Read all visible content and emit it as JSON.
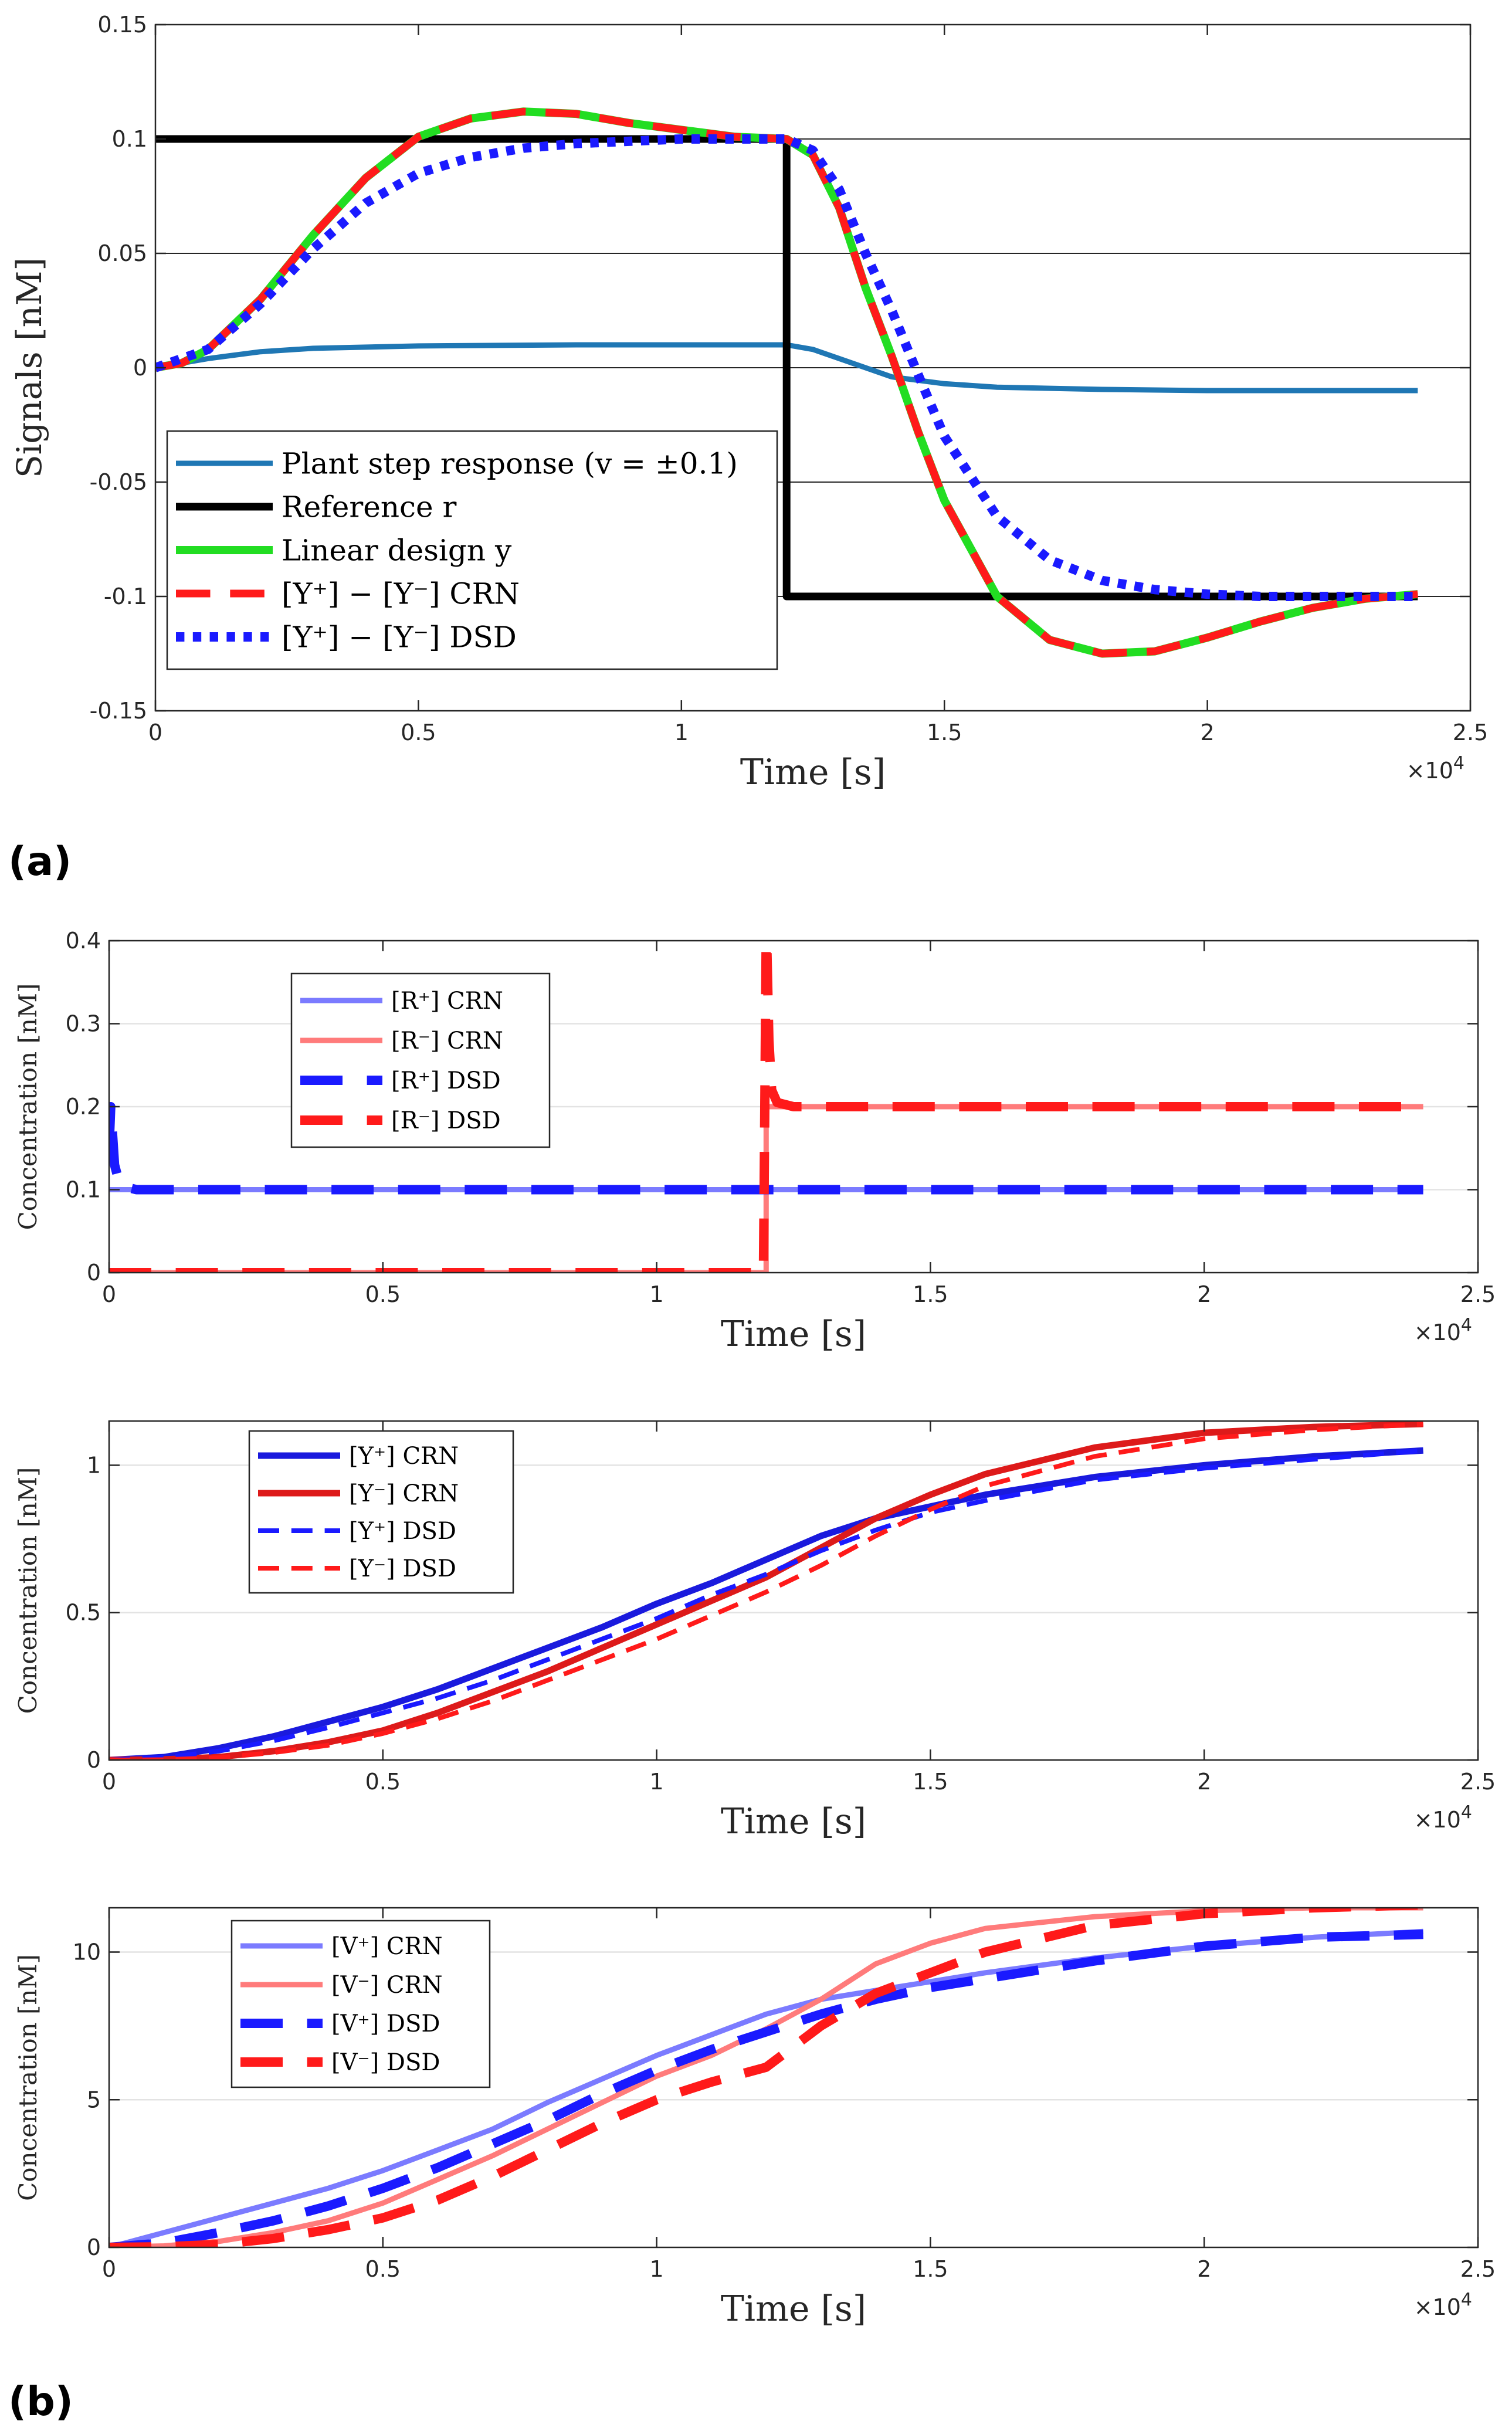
{
  "figure": {
    "label_a": "(a)",
    "label_b": "(b)"
  },
  "chart_data": [
    {
      "id": "a",
      "type": "line",
      "xlabel": "Time [s]",
      "ylabel": "Signals [nM]",
      "x_multiplier": "×10",
      "x_multiplier_exp": "4",
      "xlim": [
        0,
        2.5
      ],
      "ylim": [
        -0.15,
        0.15
      ],
      "xticks": [
        0,
        0.5,
        1,
        1.5,
        2,
        2.5
      ],
      "xtick_labels": [
        "0",
        "0.5",
        "1",
        "1.5",
        "2",
        "2.5"
      ],
      "yticks": [
        -0.15,
        -0.1,
        -0.05,
        0,
        0.05,
        0.1,
        0.15
      ],
      "ytick_labels": [
        "-0.15",
        "-0.1",
        "-0.05",
        "0",
        "0.05",
        "0.1",
        "0.15"
      ],
      "grid": "horizontal",
      "legend_position": "bottom-left",
      "series": [
        {
          "name": "Plant step response (v = ±0.1)",
          "color": "#1f77b4",
          "style": "solid",
          "x": [
            0,
            0.1,
            0.2,
            0.3,
            0.5,
            0.8,
            1.0,
            1.2,
            1.25,
            1.3,
            1.4,
            1.5,
            1.6,
            1.8,
            2.0,
            2.2,
            2.4
          ],
          "y": [
            0,
            0.004,
            0.007,
            0.0085,
            0.0095,
            0.01,
            0.01,
            0.01,
            0.008,
            0.004,
            -0.004,
            -0.007,
            -0.0085,
            -0.0095,
            -0.01,
            -0.01,
            -0.01
          ]
        },
        {
          "name": "Reference r",
          "color": "#000000",
          "style": "solid",
          "x": [
            0,
            1.2,
            1.2,
            2.4
          ],
          "y": [
            0.1,
            0.1,
            -0.1,
            -0.1
          ]
        },
        {
          "name": "Linear design y",
          "color": "#22dd22",
          "style": "solid",
          "x": [
            0,
            0.05,
            0.1,
            0.2,
            0.3,
            0.4,
            0.5,
            0.6,
            0.7,
            0.8,
            0.9,
            1.0,
            1.1,
            1.2,
            1.25,
            1.3,
            1.35,
            1.4,
            1.45,
            1.5,
            1.6,
            1.7,
            1.8,
            1.9,
            2.0,
            2.1,
            2.2,
            2.3,
            2.4
          ],
          "y": [
            0,
            0.002,
            0.008,
            0.03,
            0.058,
            0.083,
            0.101,
            0.109,
            0.112,
            0.111,
            0.107,
            0.104,
            0.101,
            0.1,
            0.093,
            0.07,
            0.035,
            0.005,
            -0.028,
            -0.058,
            -0.1,
            -0.119,
            -0.125,
            -0.124,
            -0.118,
            -0.111,
            -0.105,
            -0.101,
            -0.099
          ]
        },
        {
          "name": "[Y⁺] − [Y⁻] CRN",
          "color": "#ff1a1a",
          "style": "dashed",
          "x": [
            0,
            0.05,
            0.1,
            0.2,
            0.3,
            0.4,
            0.5,
            0.6,
            0.7,
            0.8,
            0.9,
            1.0,
            1.1,
            1.2,
            1.25,
            1.3,
            1.35,
            1.4,
            1.45,
            1.5,
            1.6,
            1.7,
            1.8,
            1.9,
            2.0,
            2.1,
            2.2,
            2.3,
            2.4
          ],
          "y": [
            0,
            0.002,
            0.008,
            0.03,
            0.058,
            0.083,
            0.101,
            0.109,
            0.112,
            0.111,
            0.107,
            0.104,
            0.101,
            0.1,
            0.093,
            0.07,
            0.035,
            0.005,
            -0.028,
            -0.058,
            -0.1,
            -0.119,
            -0.125,
            -0.124,
            -0.118,
            -0.111,
            -0.105,
            -0.101,
            -0.099
          ]
        },
        {
          "name": "[Y⁺] − [Y⁻] DSD",
          "color": "#1a1aff",
          "style": "dotted",
          "x": [
            0,
            0.1,
            0.2,
            0.3,
            0.4,
            0.5,
            0.6,
            0.7,
            0.8,
            0.9,
            1.0,
            1.1,
            1.2,
            1.25,
            1.3,
            1.35,
            1.4,
            1.45,
            1.5,
            1.6,
            1.7,
            1.8,
            1.9,
            2.0,
            2.1,
            2.2,
            2.3,
            2.4
          ],
          "y": [
            0,
            0.008,
            0.028,
            0.052,
            0.072,
            0.085,
            0.092,
            0.096,
            0.098,
            0.099,
            0.1,
            0.1,
            0.1,
            0.095,
            0.078,
            0.05,
            0.025,
            -0.003,
            -0.03,
            -0.065,
            -0.084,
            -0.093,
            -0.097,
            -0.099,
            -0.1,
            -0.1,
            -0.1,
            -0.1
          ]
        }
      ]
    },
    {
      "id": "b1",
      "type": "line",
      "xlabel": "Time [s]",
      "ylabel": "Concentration [nM]",
      "x_multiplier": "×10",
      "x_multiplier_exp": "4",
      "xlim": [
        0,
        2.5
      ],
      "ylim": [
        0,
        0.4
      ],
      "xticks": [
        0,
        0.5,
        1,
        1.5,
        2,
        2.5
      ],
      "xtick_labels": [
        "0",
        "0.5",
        "1",
        "1.5",
        "2",
        "2.5"
      ],
      "yticks": [
        0,
        0.1,
        0.2,
        0.3,
        0.4
      ],
      "ytick_labels": [
        "0",
        "0.1",
        "0.2",
        "0.3",
        "0.4"
      ],
      "grid": "horizontal",
      "legend_position": "top-left",
      "series": [
        {
          "name": "[R⁺] CRN",
          "color": "#7b7bff",
          "style": "solid",
          "x": [
            0,
            2.4
          ],
          "y": [
            0.1,
            0.1
          ]
        },
        {
          "name": "[R⁻] CRN",
          "color": "#ff7b7b",
          "style": "solid",
          "x": [
            0,
            1.2,
            1.2,
            2.4
          ],
          "y": [
            0,
            0,
            0.2,
            0.2
          ]
        },
        {
          "name": "[R⁺] DSD",
          "color": "#1a1aff",
          "style": "dashed",
          "x": [
            0,
            0.003,
            0.005,
            0.01,
            0.02,
            0.05,
            2.4
          ],
          "y": [
            0.15,
            0.2,
            0.18,
            0.13,
            0.105,
            0.1,
            0.1
          ]
        },
        {
          "name": "[R⁻] DSD",
          "color": "#ff1a1a",
          "style": "dashed",
          "x": [
            0,
            1.195,
            1.2,
            1.201,
            1.205,
            1.21,
            1.22,
            1.25,
            2.4
          ],
          "y": [
            0,
            0,
            0.4,
            0.4,
            0.28,
            0.22,
            0.205,
            0.2,
            0.2
          ]
        }
      ]
    },
    {
      "id": "b2",
      "type": "line",
      "xlabel": "Time [s]",
      "ylabel": "Concentration [nM]",
      "x_multiplier": "×10",
      "x_multiplier_exp": "4",
      "xlim": [
        0,
        2.5
      ],
      "ylim": [
        0,
        1.15
      ],
      "xticks": [
        0,
        0.5,
        1,
        1.5,
        2,
        2.5
      ],
      "xtick_labels": [
        "0",
        "0.5",
        "1",
        "1.5",
        "2",
        "2.5"
      ],
      "yticks": [
        0,
        0.5,
        1
      ],
      "ytick_labels": [
        "0",
        "0.5",
        "1"
      ],
      "grid": "horizontal",
      "legend_position": "top-left",
      "series": [
        {
          "name": "[Y⁺] CRN",
          "color": "#1a1add",
          "style": "solid",
          "x": [
            0,
            0.1,
            0.2,
            0.3,
            0.4,
            0.5,
            0.6,
            0.7,
            0.8,
            0.9,
            1.0,
            1.1,
            1.2,
            1.3,
            1.4,
            1.5,
            1.6,
            1.8,
            2.0,
            2.2,
            2.4
          ],
          "y": [
            0,
            0.01,
            0.04,
            0.08,
            0.13,
            0.18,
            0.24,
            0.31,
            0.38,
            0.45,
            0.53,
            0.6,
            0.68,
            0.76,
            0.82,
            0.86,
            0.9,
            0.96,
            1.0,
            1.03,
            1.05
          ]
        },
        {
          "name": "[Y⁻] CRN",
          "color": "#dd1a1a",
          "style": "solid",
          "x": [
            0,
            0.1,
            0.2,
            0.3,
            0.4,
            0.5,
            0.6,
            0.7,
            0.8,
            0.9,
            1.0,
            1.1,
            1.2,
            1.3,
            1.4,
            1.5,
            1.6,
            1.8,
            2.0,
            2.2,
            2.4
          ],
          "y": [
            0,
            0.002,
            0.01,
            0.03,
            0.06,
            0.1,
            0.16,
            0.23,
            0.3,
            0.38,
            0.46,
            0.54,
            0.62,
            0.72,
            0.82,
            0.9,
            0.97,
            1.06,
            1.11,
            1.13,
            1.14
          ]
        },
        {
          "name": "[Y⁺] DSD",
          "color": "#1a1aff",
          "style": "dashed",
          "x": [
            0,
            0.1,
            0.2,
            0.3,
            0.4,
            0.5,
            0.6,
            0.7,
            0.8,
            0.9,
            1.0,
            1.1,
            1.2,
            1.3,
            1.4,
            1.5,
            1.6,
            1.8,
            2.0,
            2.2,
            2.4
          ],
          "y": [
            0,
            0.008,
            0.03,
            0.065,
            0.11,
            0.16,
            0.21,
            0.27,
            0.34,
            0.41,
            0.48,
            0.56,
            0.63,
            0.71,
            0.78,
            0.84,
            0.88,
            0.95,
            0.99,
            1.02,
            1.05
          ]
        },
        {
          "name": "[Y⁻] DSD",
          "color": "#ff1a1a",
          "style": "dashed",
          "x": [
            0,
            0.1,
            0.2,
            0.3,
            0.4,
            0.5,
            0.6,
            0.7,
            0.8,
            0.9,
            1.0,
            1.1,
            1.2,
            1.3,
            1.4,
            1.5,
            1.6,
            1.8,
            2.0,
            2.2,
            2.4
          ],
          "y": [
            0,
            0.001,
            0.008,
            0.025,
            0.05,
            0.09,
            0.14,
            0.2,
            0.27,
            0.34,
            0.41,
            0.49,
            0.57,
            0.66,
            0.76,
            0.85,
            0.93,
            1.03,
            1.09,
            1.12,
            1.14
          ]
        }
      ]
    },
    {
      "id": "b3",
      "type": "line",
      "xlabel": "Time [s]",
      "ylabel": "Concentration [nM]",
      "x_multiplier": "×10",
      "x_multiplier_exp": "4",
      "xlim": [
        0,
        2.5
      ],
      "ylim": [
        0,
        11.5
      ],
      "xticks": [
        0,
        0.5,
        1,
        1.5,
        2,
        2.5
      ],
      "xtick_labels": [
        "0",
        "0.5",
        "1",
        "1.5",
        "2",
        "2.5"
      ],
      "yticks": [
        0,
        5,
        10
      ],
      "ytick_labels": [
        "0",
        "5",
        "10"
      ],
      "grid": "horizontal",
      "legend_position": "top-left",
      "series": [
        {
          "name": "[V⁺] CRN",
          "color": "#7b7bff",
          "style": "solid",
          "x": [
            0,
            0.1,
            0.2,
            0.3,
            0.4,
            0.5,
            0.6,
            0.7,
            0.8,
            0.9,
            1.0,
            1.1,
            1.2,
            1.3,
            1.4,
            1.5,
            1.6,
            1.8,
            2.0,
            2.2,
            2.4
          ],
          "y": [
            0,
            0.5,
            1.0,
            1.5,
            2.0,
            2.6,
            3.3,
            4.0,
            4.9,
            5.7,
            6.5,
            7.2,
            7.9,
            8.4,
            8.7,
            9.0,
            9.3,
            9.8,
            10.2,
            10.5,
            10.7
          ]
        },
        {
          "name": "[V⁻] CRN",
          "color": "#ff7b7b",
          "style": "solid",
          "x": [
            0,
            0.1,
            0.2,
            0.3,
            0.4,
            0.5,
            0.6,
            0.7,
            0.8,
            0.9,
            1.0,
            1.1,
            1.2,
            1.3,
            1.4,
            1.5,
            1.6,
            1.8,
            2.0,
            2.2,
            2.4
          ],
          "y": [
            0,
            0.05,
            0.2,
            0.5,
            0.9,
            1.5,
            2.3,
            3.1,
            4.0,
            4.9,
            5.8,
            6.5,
            7.4,
            8.4,
            9.6,
            10.3,
            10.8,
            11.2,
            11.4,
            11.5,
            11.5
          ]
        },
        {
          "name": "[V⁺] DSD",
          "color": "#1a1aff",
          "style": "dashed",
          "x": [
            0,
            0.1,
            0.2,
            0.3,
            0.4,
            0.5,
            0.6,
            0.7,
            0.8,
            0.9,
            1.0,
            1.1,
            1.2,
            1.3,
            1.4,
            1.5,
            1.6,
            1.8,
            2.0,
            2.2,
            2.4
          ],
          "y": [
            0,
            0.15,
            0.5,
            0.9,
            1.4,
            2.0,
            2.7,
            3.5,
            4.3,
            5.2,
            6.0,
            6.7,
            7.3,
            7.9,
            8.4,
            8.8,
            9.1,
            9.7,
            10.2,
            10.5,
            10.6
          ]
        },
        {
          "name": "[V⁻] DSD",
          "color": "#ff1a1a",
          "style": "dashed",
          "x": [
            0,
            0.1,
            0.2,
            0.3,
            0.4,
            0.5,
            0.6,
            0.7,
            0.8,
            0.9,
            1.0,
            1.1,
            1.2,
            1.3,
            1.4,
            1.5,
            1.6,
            1.8,
            2.0,
            2.2,
            2.4
          ],
          "y": [
            0,
            0.02,
            0.1,
            0.3,
            0.6,
            1.0,
            1.6,
            2.4,
            3.3,
            4.2,
            5.0,
            5.6,
            6.1,
            7.5,
            8.6,
            9.3,
            10.0,
            10.9,
            11.3,
            11.5,
            11.6
          ]
        }
      ]
    }
  ]
}
